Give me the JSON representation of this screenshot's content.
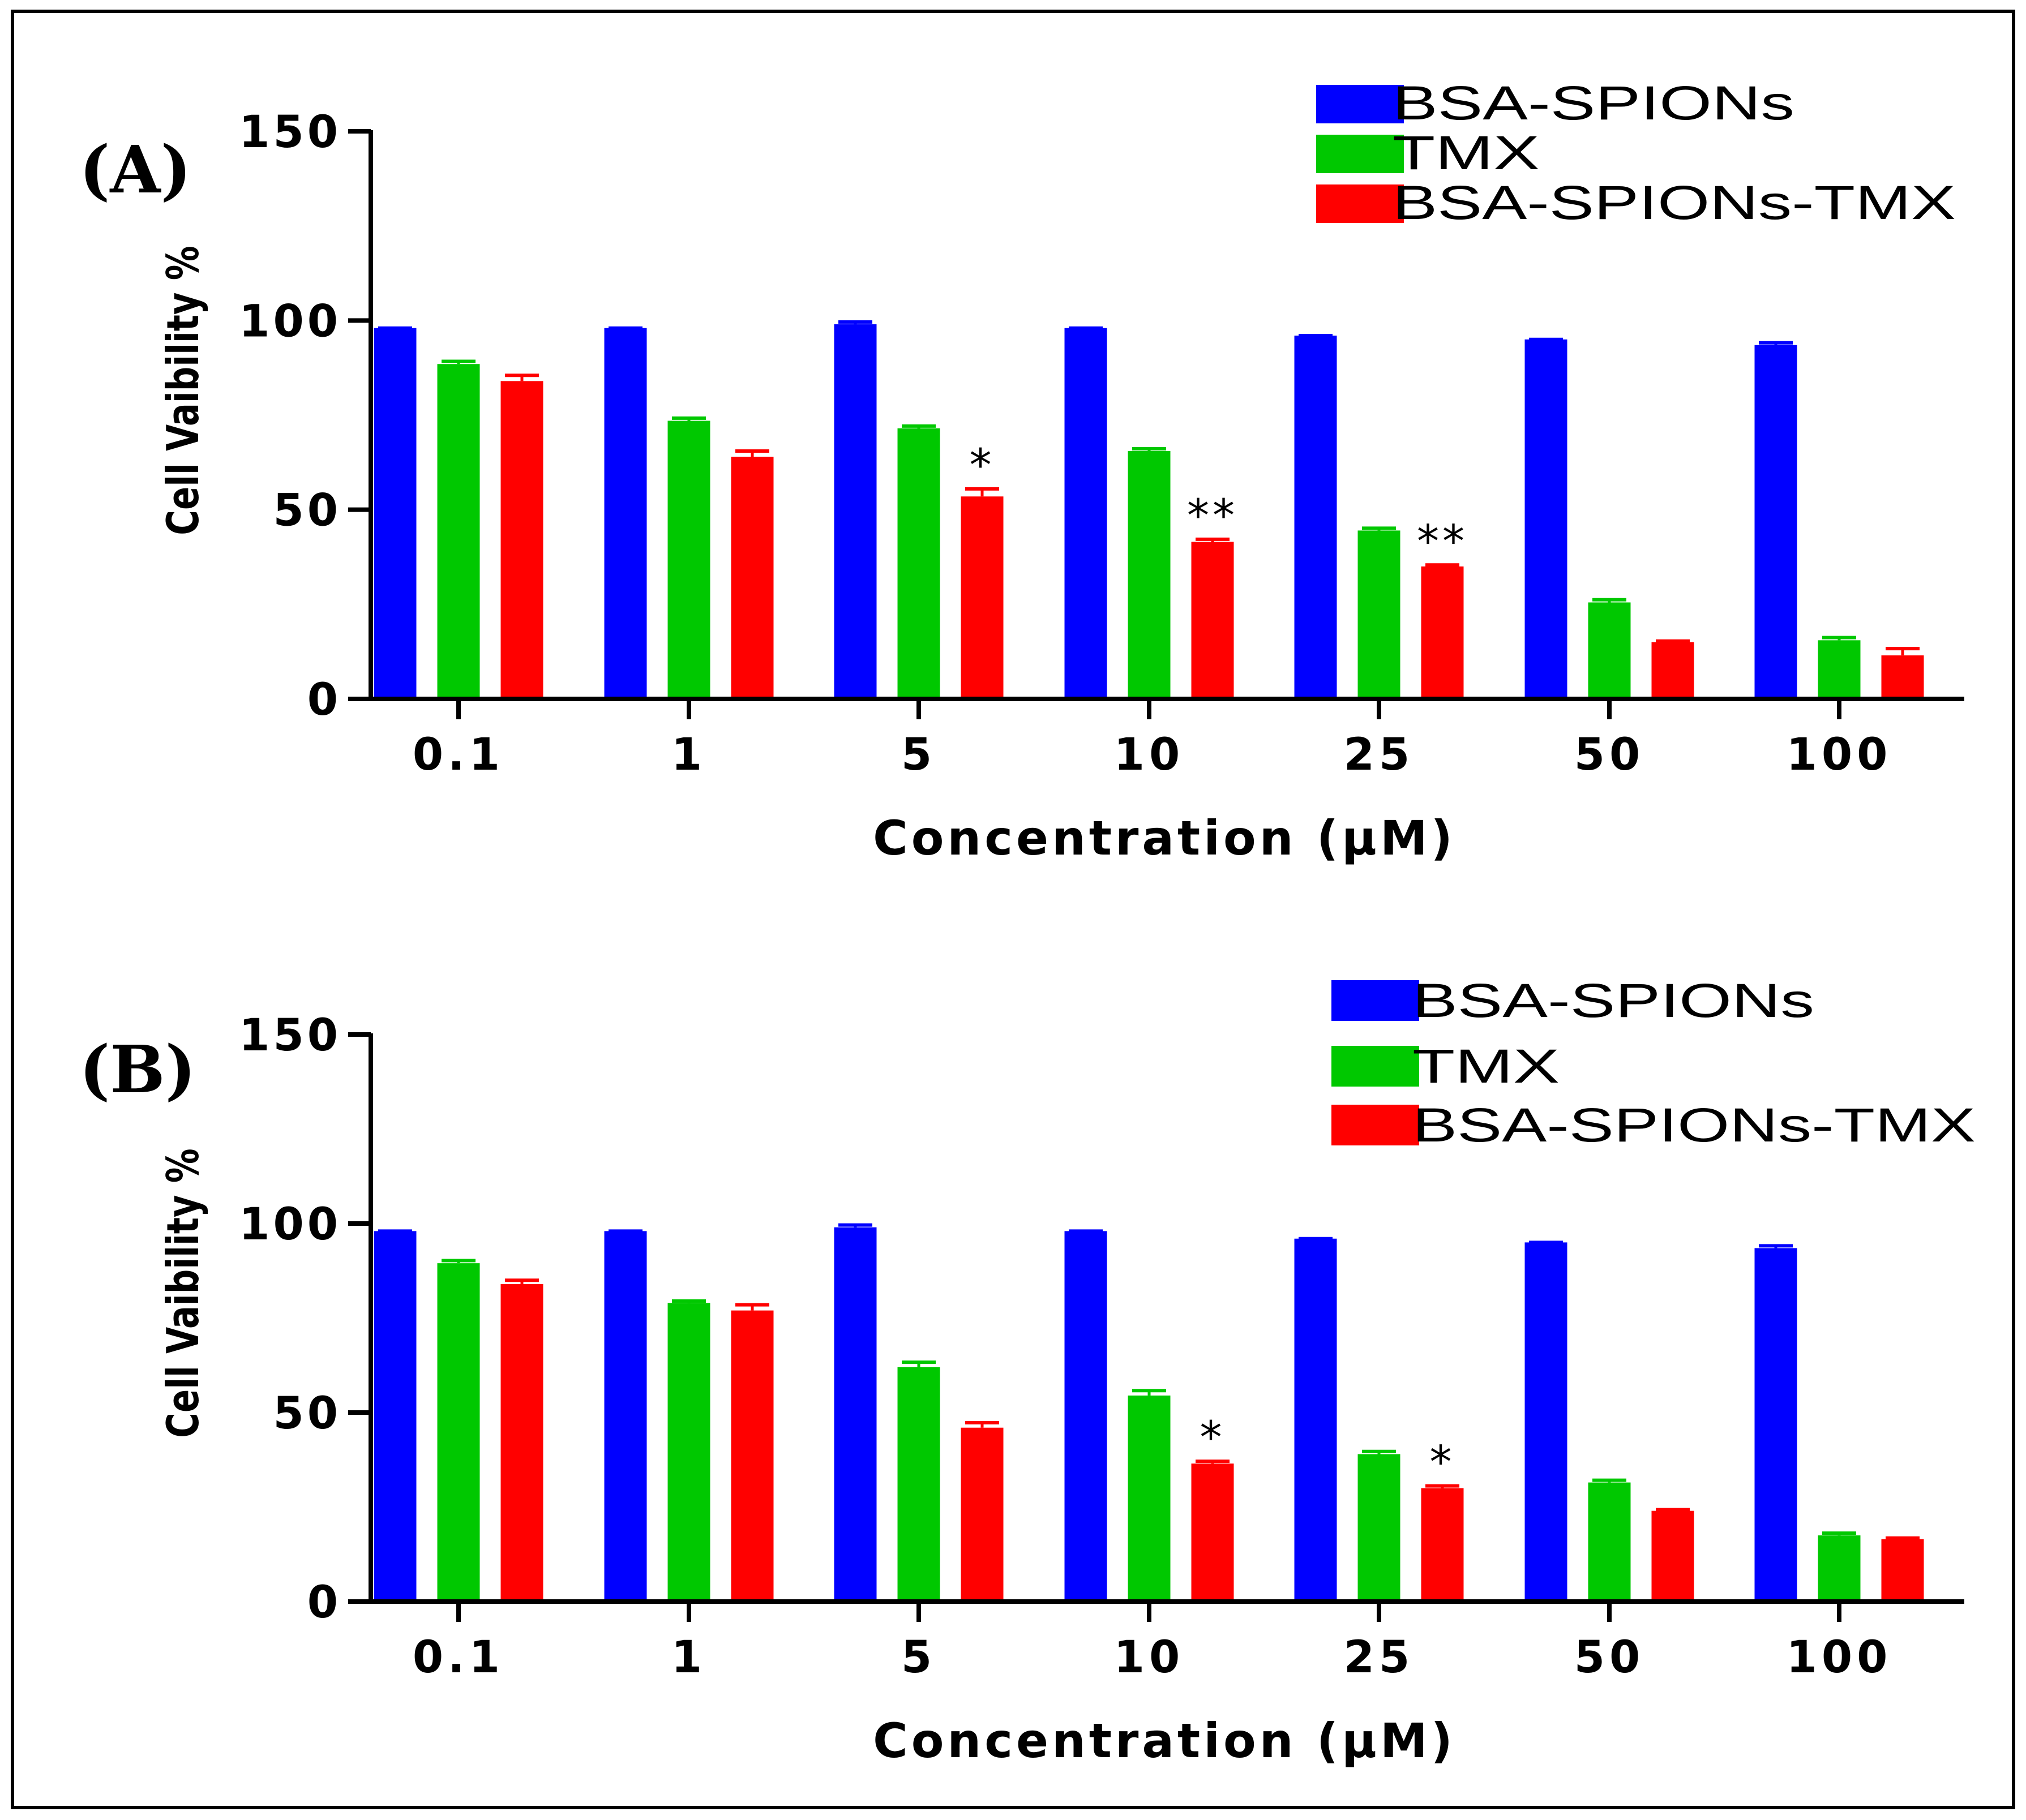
{
  "chart_data": [
    {
      "type": "bar",
      "panel_label": "(A)",
      "title": "",
      "xlabel": "Concentration (μM)",
      "ylabel": "Cell Vaibility %",
      "ylim": [
        0,
        150
      ],
      "yticks": [
        0,
        50,
        100,
        150
      ],
      "categories": [
        "0.1",
        "1",
        "5",
        "10",
        "25",
        "50",
        "100"
      ],
      "series": [
        {
          "name": "BSA-SPIONs",
          "color": "#0000ff",
          "values": [
            98,
            98,
            99,
            98,
            96,
            95,
            93.5
          ],
          "errors": [
            0,
            0,
            0.6,
            0,
            0,
            0,
            0.6
          ]
        },
        {
          "name": "TMX",
          "color": "#00c800",
          "values": [
            88.5,
            73.5,
            71.5,
            65.5,
            44.5,
            25.5,
            15.5
          ],
          "errors": [
            0.7,
            0.7,
            0.6,
            0.6,
            0.6,
            0.7,
            0.7
          ]
        },
        {
          "name": "BSA-SPIONs-TMX",
          "color": "#ff0000",
          "values": [
            84,
            64,
            53.5,
            41.5,
            35,
            15,
            11.5
          ],
          "errors": [
            1.5,
            1.5,
            2,
            0.7,
            0.4,
            0.3,
            1.8
          ]
        }
      ],
      "annotations": [
        {
          "category": "5",
          "series": "BSA-SPIONs-TMX",
          "text": "*"
        },
        {
          "category": "10",
          "series": "BSA-SPIONs-TMX",
          "text": "**"
        },
        {
          "category": "25",
          "series": "BSA-SPIONs-TMX",
          "text": "**"
        }
      ],
      "legend_placement": "top-right",
      "grid": false
    },
    {
      "type": "bar",
      "panel_label": "(B)",
      "title": "",
      "xlabel": "Concentration (μM)",
      "ylabel": "Cell Vaibility %",
      "ylim": [
        0,
        150
      ],
      "yticks": [
        0,
        50,
        100,
        150
      ],
      "categories": [
        "0.1",
        "1",
        "5",
        "10",
        "25",
        "50",
        "100"
      ],
      "series": [
        {
          "name": "BSA-SPIONs",
          "color": "#0000ff",
          "values": [
            98,
            98,
            99,
            98,
            96,
            95,
            93.5
          ],
          "errors": [
            0,
            0,
            0.6,
            0,
            0,
            0,
            0.6
          ]
        },
        {
          "name": "TMX",
          "color": "#00c800",
          "values": [
            89.5,
            79,
            62,
            54.5,
            39,
            31.5,
            17.5
          ],
          "errors": [
            0.7,
            0.5,
            1.3,
            1.3,
            0.7,
            0.6,
            0.6
          ]
        },
        {
          "name": "BSA-SPIONs-TMX",
          "color": "#ff0000",
          "values": [
            84,
            77,
            46,
            36.5,
            30,
            24,
            16.5
          ],
          "errors": [
            1,
            1.5,
            1.3,
            0.6,
            0.6,
            0.3,
            0.3
          ]
        }
      ],
      "annotations": [
        {
          "category": "10",
          "series": "BSA-SPIONs-TMX",
          "text": "*"
        },
        {
          "category": "25",
          "series": "BSA-SPIONs-TMX",
          "text": "*"
        }
      ],
      "legend_placement": "top-right",
      "grid": false
    }
  ]
}
